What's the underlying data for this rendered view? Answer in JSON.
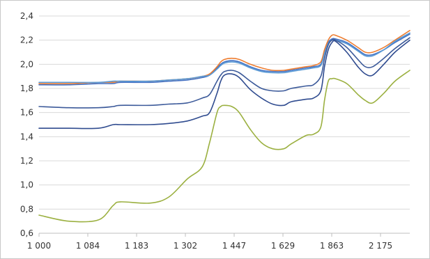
{
  "chart_data": {
    "type": "line",
    "title": "",
    "xlabel": "",
    "ylabel": "",
    "ylim": [
      0.6,
      2.4
    ],
    "y_ticks": [
      0.6,
      0.8,
      1.0,
      1.2,
      1.4,
      1.6,
      1.8,
      2.0,
      2.2,
      2.4
    ],
    "y_tick_labels": [
      "0,6",
      "0,8",
      "1,0",
      "1,2",
      "1,4",
      "1,6",
      "1,8",
      "2,0",
      "2,2",
      "2,4"
    ],
    "x_tick_labels": [
      "1 000",
      "1 084",
      "1 183",
      "1 302",
      "1 447",
      "1 629",
      "1 863",
      "2 175"
    ],
    "grid": "horizontal",
    "legend": "none",
    "x_positions": [
      0,
      0.08,
      0.16,
      0.2,
      0.22,
      0.3,
      0.35,
      0.4,
      0.44,
      0.46,
      0.48,
      0.49,
      0.5,
      0.52,
      0.54,
      0.57,
      0.6,
      0.63,
      0.66,
      0.68,
      0.72,
      0.74,
      0.76,
      0.77,
      0.78,
      0.79,
      0.8,
      0.83,
      0.86,
      0.88,
      0.9,
      0.93,
      0.96,
      1.0
    ],
    "series": [
      {
        "color": "#4472C4",
        "values": [
          1.83,
          1.83,
          1.84,
          1.84,
          1.85,
          1.85,
          1.86,
          1.87,
          1.89,
          1.91,
          1.97,
          2.0,
          2.02,
          2.03,
          2.02,
          1.98,
          1.95,
          1.94,
          1.94,
          1.95,
          1.97,
          1.98,
          2.0,
          2.1,
          2.18,
          2.21,
          2.21,
          2.18,
          2.12,
          2.08,
          2.08,
          2.12,
          2.18,
          2.25
        ]
      },
      {
        "color": "#ED7D31",
        "values": [
          1.84,
          1.84,
          1.85,
          1.85,
          1.86,
          1.86,
          1.87,
          1.88,
          1.9,
          1.92,
          1.98,
          2.02,
          2.04,
          2.05,
          2.04,
          2.0,
          1.97,
          1.95,
          1.95,
          1.96,
          1.98,
          1.99,
          2.02,
          2.12,
          2.2,
          2.24,
          2.24,
          2.2,
          2.14,
          2.1,
          2.1,
          2.14,
          2.2,
          2.28
        ]
      },
      {
        "color": "#5B9BD5",
        "values": [
          1.85,
          1.85,
          1.85,
          1.86,
          1.86,
          1.86,
          1.87,
          1.88,
          1.9,
          1.91,
          1.96,
          1.99,
          2.01,
          2.02,
          2.01,
          1.97,
          1.94,
          1.93,
          1.93,
          1.94,
          1.96,
          1.97,
          1.99,
          2.09,
          2.17,
          2.2,
          2.2,
          2.17,
          2.11,
          2.07,
          2.07,
          2.12,
          2.19,
          2.26
        ]
      },
      {
        "color": "#3C5A9A",
        "values": [
          1.65,
          1.64,
          1.64,
          1.65,
          1.66,
          1.66,
          1.67,
          1.68,
          1.72,
          1.75,
          1.86,
          1.91,
          1.94,
          1.95,
          1.93,
          1.86,
          1.8,
          1.78,
          1.78,
          1.8,
          1.82,
          1.83,
          1.9,
          2.05,
          2.16,
          2.2,
          2.2,
          2.14,
          2.04,
          1.98,
          1.98,
          2.05,
          2.13,
          2.22
        ]
      },
      {
        "color": "#2F4B8F",
        "values": [
          1.47,
          1.47,
          1.47,
          1.5,
          1.5,
          1.5,
          1.51,
          1.53,
          1.57,
          1.6,
          1.76,
          1.86,
          1.91,
          1.92,
          1.89,
          1.79,
          1.72,
          1.67,
          1.66,
          1.69,
          1.71,
          1.72,
          1.78,
          1.98,
          2.12,
          2.18,
          2.19,
          2.1,
          1.98,
          1.92,
          1.91,
          2.0,
          2.1,
          2.2
        ]
      },
      {
        "color": "#9BB040",
        "values": [
          0.75,
          0.7,
          0.71,
          0.83,
          0.86,
          0.85,
          0.9,
          1.05,
          1.15,
          1.35,
          1.6,
          1.65,
          1.66,
          1.65,
          1.6,
          1.46,
          1.35,
          1.3,
          1.3,
          1.34,
          1.41,
          1.42,
          1.48,
          1.7,
          1.86,
          1.88,
          1.88,
          1.84,
          1.75,
          1.7,
          1.68,
          1.76,
          1.86,
          1.95
        ]
      }
    ]
  }
}
